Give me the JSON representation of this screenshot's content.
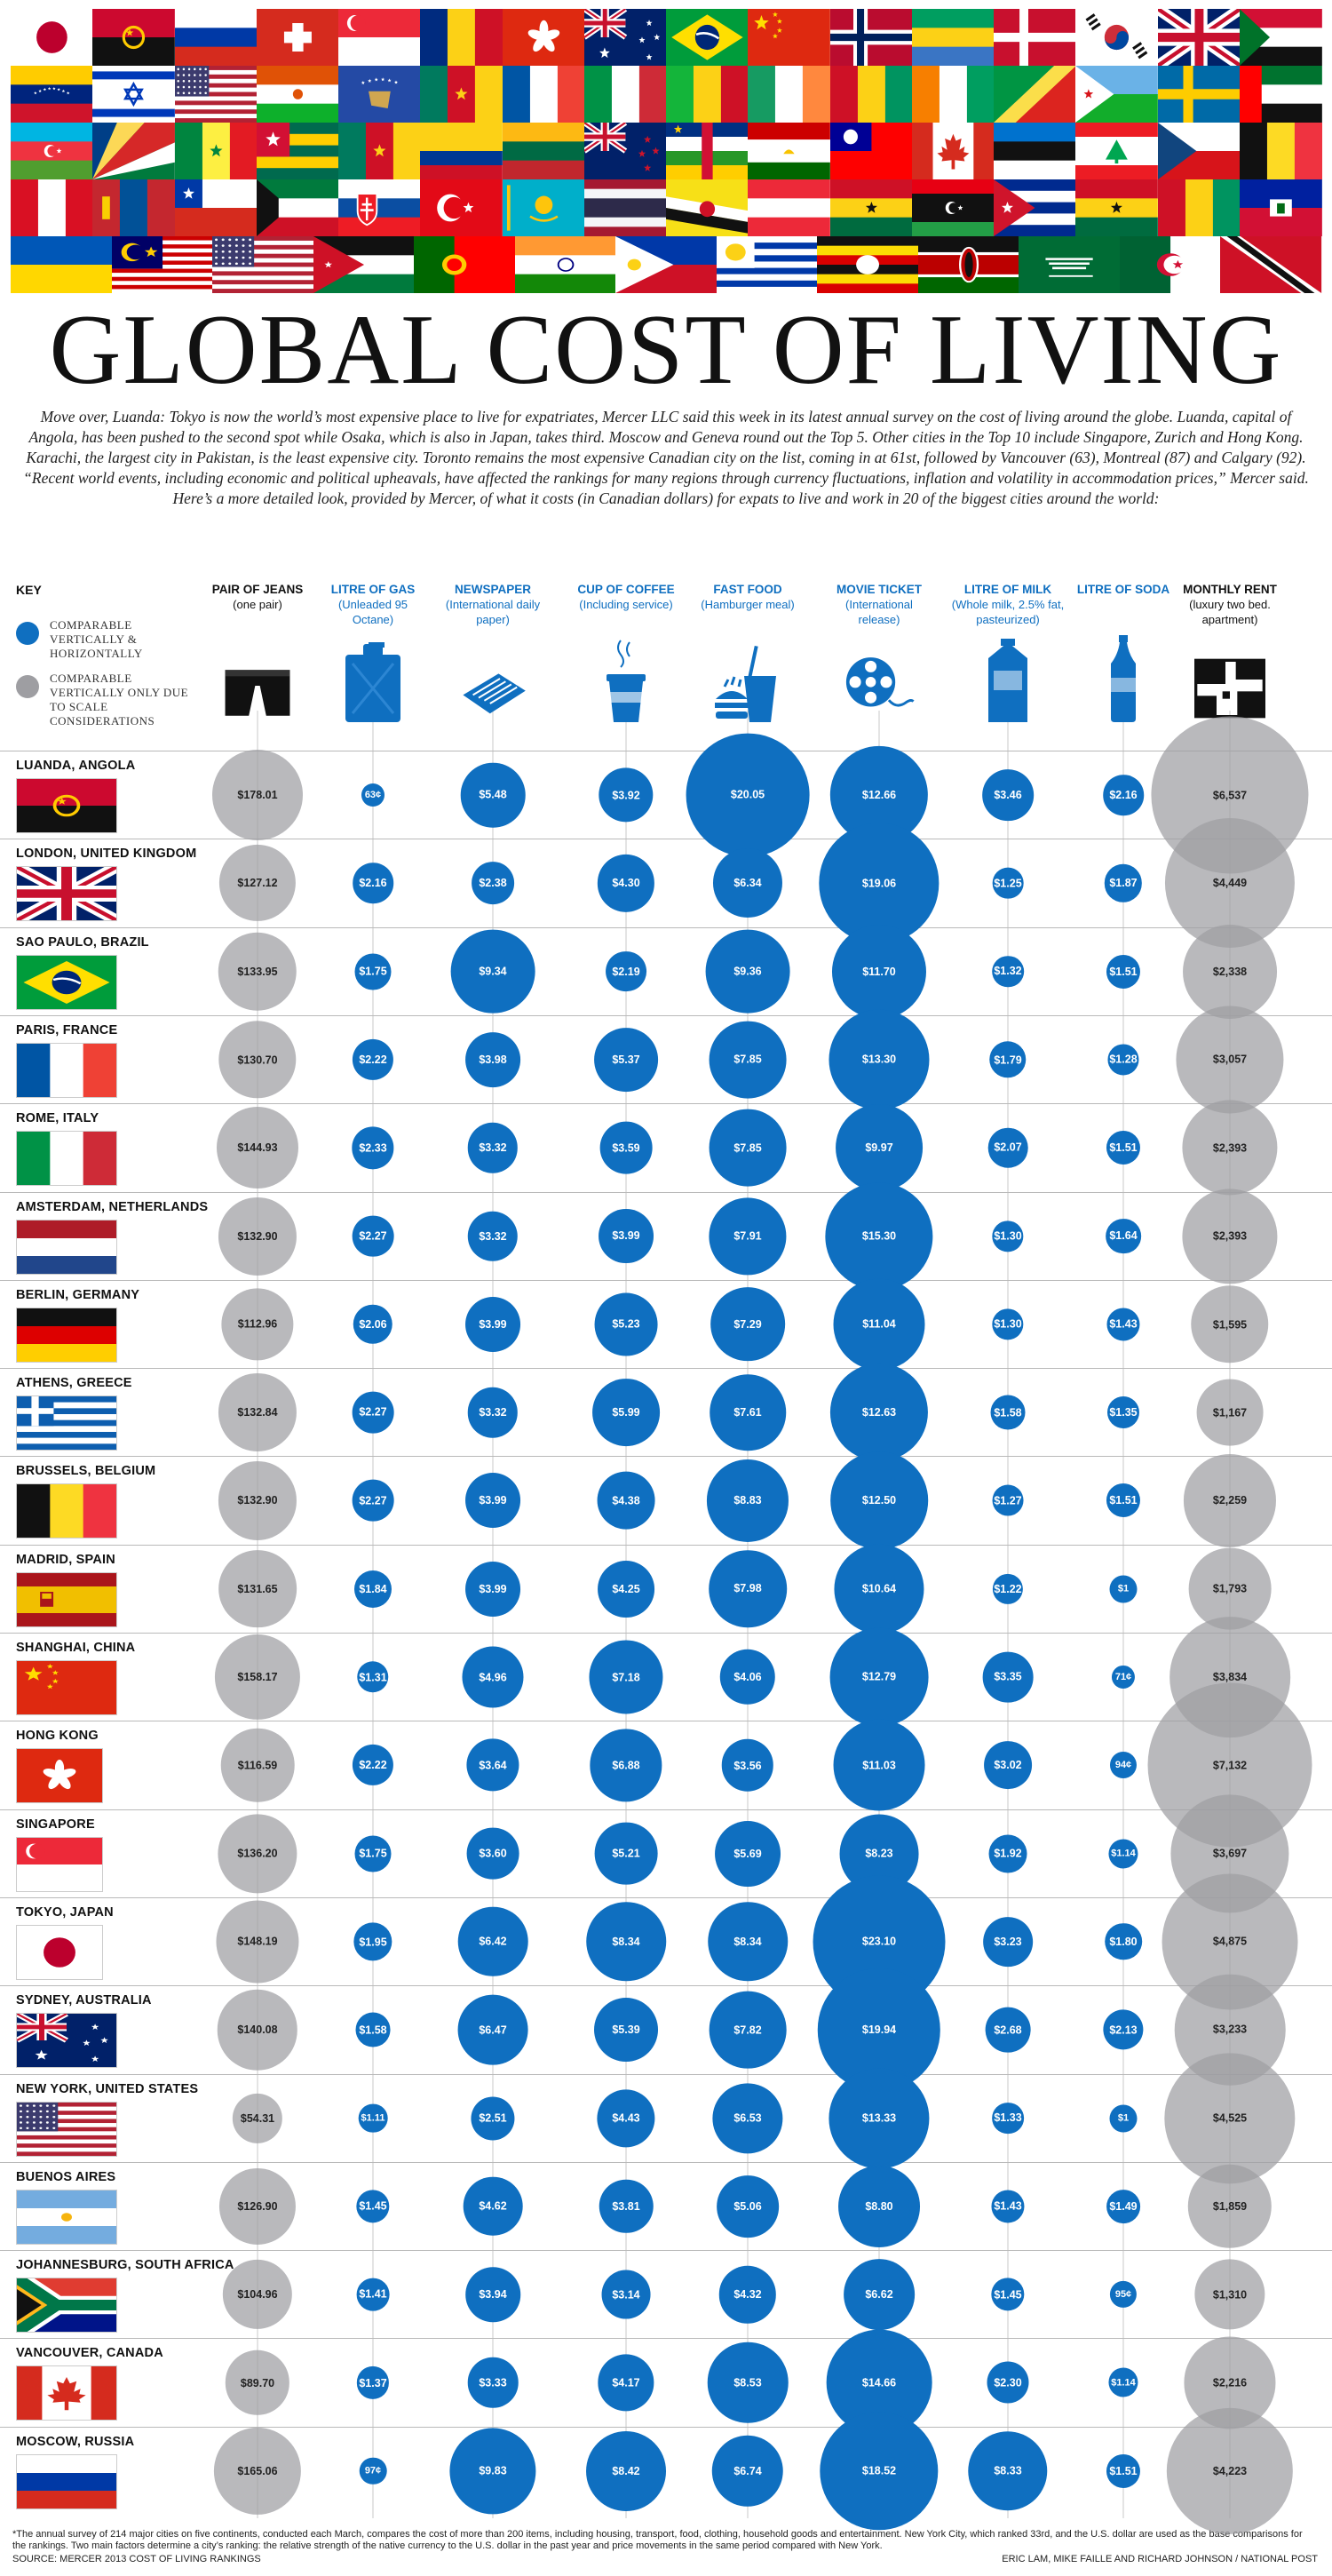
{
  "title": "GLOBAL COST OF LIVING",
  "intro": "Move over, Luanda: Tokyo is now the world’s most expensive place to live for expatriates, Mercer LLC said this week in its latest annual survey on the cost of living around the globe. Luanda, capital of Angola, has been pushed to the second spot while Osaka, which is also in Japan, takes third. Moscow and Geneva round out the Top 5. Other cities in the Top 10 include Singapore, Zurich and Hong Kong. Karachi, the largest city in Pakistan, is the least expensive city. Toronto remains the most expensive Canadian city on the list, coming in at 61st, followed by Vancouver (63), Montreal (87) and Calgary (92). “Recent world events, including economic and political upheavals, have affected the rankings for many regions through currency fluctuations, inflation and volatility in accommodation prices,” Mercer said. Here’s a more detailed look, provided by Mercer, of what it costs (in Canadian dollars) for expats to live and work in 20 of the biggest cities around the world:",
  "key": {
    "title": "KEY",
    "blue_label": "COMPARABLE VERTICALLY & HORIZONTALLY",
    "gray_label": "COMPARABLE VERTICALLY ONLY DUE TO SCALE CONSIDERATIONS"
  },
  "columns": [
    {
      "id": "jeans",
      "title": "PAIR OF JEANS",
      "sub": "(one pair)",
      "color": "#111111",
      "icon": "jeans-icon",
      "scale": "gray"
    },
    {
      "id": "gas",
      "title": "LITRE OF GAS",
      "sub": "(Unleaded 95 Octane)",
      "color": "#0f6fc0",
      "icon": "gas-can-icon",
      "scale": "blue"
    },
    {
      "id": "newspaper",
      "title": "NEWSPAPER",
      "sub": "(International daily paper)",
      "color": "#0f6fc0",
      "icon": "newspaper-icon",
      "scale": "blue"
    },
    {
      "id": "coffee",
      "title": "CUP OF COFFEE",
      "sub": "(Including service)",
      "color": "#0f6fc0",
      "icon": "coffee-cup-icon",
      "scale": "blue"
    },
    {
      "id": "fastfood",
      "title": "FAST FOOD",
      "sub": "(Hamburger meal)",
      "color": "#0f6fc0",
      "icon": "fast-food-icon",
      "scale": "blue"
    },
    {
      "id": "movie",
      "title": "MOVIE TICKET",
      "sub": "(International release)",
      "color": "#0f6fc0",
      "icon": "film-reel-icon",
      "scale": "blue"
    },
    {
      "id": "milk",
      "title": "LITRE OF MILK",
      "sub": "(Whole milk, 2.5% fat, pasteurized)",
      "color": "#0f6fc0",
      "icon": "milk-carton-icon",
      "scale": "blue"
    },
    {
      "id": "soda",
      "title": "LITRE OF SODA",
      "sub": "",
      "color": "#0f6fc0",
      "icon": "soda-bottle-icon",
      "scale": "blue"
    },
    {
      "id": "rent",
      "title": "MONTHLY RENT",
      "sub": "(luxury two bed. apartment)",
      "color": "#111111",
      "icon": "floor-plan-icon",
      "scale": "gray"
    }
  ],
  "cities": [
    {
      "name": "LUANDA, ANGOLA",
      "flag": "angola",
      "values": [
        "$178.01",
        "63¢",
        "$5.48",
        "$3.92",
        "$20.05",
        "$12.66",
        "$3.46",
        "$2.16",
        "$6,537"
      ],
      "nums": [
        178.01,
        0.63,
        5.48,
        3.92,
        20.05,
        12.66,
        3.46,
        2.16,
        6537
      ]
    },
    {
      "name": "LONDON, UNITED KINGDOM",
      "flag": "uk",
      "values": [
        "$127.12",
        "$2.16",
        "$2.38",
        "$4.30",
        "$6.34",
        "$19.06",
        "$1.25",
        "$1.87",
        "$4,449"
      ],
      "nums": [
        127.12,
        2.16,
        2.38,
        4.3,
        6.34,
        19.06,
        1.25,
        1.87,
        4449
      ]
    },
    {
      "name": "SAO PAULO, BRAZIL",
      "flag": "brazil",
      "values": [
        "$133.95",
        "$1.75",
        "$9.34",
        "$2.19",
        "$9.36",
        "$11.70",
        "$1.32",
        "$1.51",
        "$2,338"
      ],
      "nums": [
        133.95,
        1.75,
        9.34,
        2.19,
        9.36,
        11.7,
        1.32,
        1.51,
        2338
      ]
    },
    {
      "name": "PARIS, FRANCE",
      "flag": "france",
      "values": [
        "$130.70",
        "$2.22",
        "$3.98",
        "$5.37",
        "$7.85",
        "$13.30",
        "$1.79",
        "$1.28",
        "$3,057"
      ],
      "nums": [
        130.7,
        2.22,
        3.98,
        5.37,
        7.85,
        13.3,
        1.79,
        1.28,
        3057
      ]
    },
    {
      "name": "ROME, ITALY",
      "flag": "italy",
      "values": [
        "$144.93",
        "$2.33",
        "$3.32",
        "$3.59",
        "$7.85",
        "$9.97",
        "$2.07",
        "$1.51",
        "$2,393"
      ],
      "nums": [
        144.93,
        2.33,
        3.32,
        3.59,
        7.85,
        9.97,
        2.07,
        1.51,
        2393
      ]
    },
    {
      "name": "AMSTERDAM, NETHERLANDS",
      "flag": "netherlands",
      "values": [
        "$132.90",
        "$2.27",
        "$3.32",
        "$3.99",
        "$7.91",
        "$15.30",
        "$1.30",
        "$1.64",
        "$2,393"
      ],
      "nums": [
        132.9,
        2.27,
        3.32,
        3.99,
        7.91,
        15.3,
        1.3,
        1.64,
        2393
      ]
    },
    {
      "name": "BERLIN, GERMANY",
      "flag": "germany",
      "values": [
        "$112.96",
        "$2.06",
        "$3.99",
        "$5.23",
        "$7.29",
        "$11.04",
        "$1.30",
        "$1.43",
        "$1,595"
      ],
      "nums": [
        112.96,
        2.06,
        3.99,
        5.23,
        7.29,
        11.04,
        1.3,
        1.43,
        1595
      ]
    },
    {
      "name": "ATHENS, GREECE",
      "flag": "greece",
      "values": [
        "$132.84",
        "$2.27",
        "$3.32",
        "$5.99",
        "$7.61",
        "$12.63",
        "$1.58",
        "$1.35",
        "$1,167"
      ],
      "nums": [
        132.84,
        2.27,
        3.32,
        5.99,
        7.61,
        12.63,
        1.58,
        1.35,
        1167
      ]
    },
    {
      "name": "BRUSSELS, BELGIUM",
      "flag": "belgium",
      "values": [
        "$132.90",
        "$2.27",
        "$3.99",
        "$4.38",
        "$8.83",
        "$12.50",
        "$1.27",
        "$1.51",
        "$2,259"
      ],
      "nums": [
        132.9,
        2.27,
        3.99,
        4.38,
        8.83,
        12.5,
        1.27,
        1.51,
        2259
      ]
    },
    {
      "name": "MADRID, SPAIN",
      "flag": "spain",
      "values": [
        "$131.65",
        "$1.84",
        "$3.99",
        "$4.25",
        "$7.98",
        "$10.64",
        "$1.22",
        "$1",
        "$1,793"
      ],
      "nums": [
        131.65,
        1.84,
        3.99,
        4.25,
        7.98,
        10.64,
        1.22,
        1.0,
        1793
      ]
    },
    {
      "name": "SHANGHAI, CHINA",
      "flag": "china",
      "values": [
        "$158.17",
        "$1.31",
        "$4.96",
        "$7.18",
        "$4.06",
        "$12.79",
        "$3.35",
        "71¢",
        "$3,834"
      ],
      "nums": [
        158.17,
        1.31,
        4.96,
        7.18,
        4.06,
        12.79,
        3.35,
        0.71,
        3834
      ]
    },
    {
      "name": "HONG KONG",
      "flag": "hongkong",
      "values": [
        "$116.59",
        "$2.22",
        "$3.64",
        "$6.88",
        "$3.56",
        "$11.03",
        "$3.02",
        "94¢",
        "$7,132"
      ],
      "nums": [
        116.59,
        2.22,
        3.64,
        6.88,
        3.56,
        11.03,
        3.02,
        0.94,
        7132
      ]
    },
    {
      "name": "SINGAPORE",
      "flag": "singapore",
      "values": [
        "$136.20",
        "$1.75",
        "$3.60",
        "$5.21",
        "$5.69",
        "$8.23",
        "$1.92",
        "$1.14",
        "$3,697"
      ],
      "nums": [
        136.2,
        1.75,
        3.6,
        5.21,
        5.69,
        8.23,
        1.92,
        1.14,
        3697
      ]
    },
    {
      "name": "TOKYO, JAPAN",
      "flag": "japan",
      "values": [
        "$148.19",
        "$1.95",
        "$6.42",
        "$8.34",
        "$8.34",
        "$23.10",
        "$3.23",
        "$1.80",
        "$4,875"
      ],
      "nums": [
        148.19,
        1.95,
        6.42,
        8.34,
        8.34,
        23.1,
        3.23,
        1.8,
        4875
      ]
    },
    {
      "name": "SYDNEY, AUSTRALIA",
      "flag": "australia",
      "values": [
        "$140.08",
        "$1.58",
        "$6.47",
        "$5.39",
        "$7.82",
        "$19.94",
        "$2.68",
        "$2.13",
        "$3,233"
      ],
      "nums": [
        140.08,
        1.58,
        6.47,
        5.39,
        7.82,
        19.94,
        2.68,
        2.13,
        3233
      ]
    },
    {
      "name": "NEW YORK, UNITED STATES",
      "flag": "usa",
      "values": [
        "$54.31",
        "$1.11",
        "$2.51",
        "$4.43",
        "$6.53",
        "$13.33",
        "$1.33",
        "$1",
        "$4,525"
      ],
      "nums": [
        54.31,
        1.11,
        2.51,
        4.43,
        6.53,
        13.33,
        1.33,
        1.0,
        4525
      ]
    },
    {
      "name": "BUENOS AIRES",
      "flag": "argentina",
      "values": [
        "$126.90",
        "$1.45",
        "$4.62",
        "$3.81",
        "$5.06",
        "$8.80",
        "$1.43",
        "$1.49",
        "$1,859"
      ],
      "nums": [
        126.9,
        1.45,
        4.62,
        3.81,
        5.06,
        8.8,
        1.43,
        1.49,
        1859
      ]
    },
    {
      "name": "JOHANNESBURG, SOUTH AFRICA",
      "flag": "southafrica",
      "values": [
        "$104.96",
        "$1.41",
        "$3.94",
        "$3.14",
        "$4.32",
        "$6.62",
        "$1.45",
        "95¢",
        "$1,310"
      ],
      "nums": [
        104.96,
        1.41,
        3.94,
        3.14,
        4.32,
        6.62,
        1.45,
        0.95,
        1310
      ]
    },
    {
      "name": "VANCOUVER, CANADA",
      "flag": "canada",
      "values": [
        "$89.70",
        "$1.37",
        "$3.33",
        "$4.17",
        "$8.53",
        "$14.66",
        "$2.30",
        "$1.14",
        "$2,216"
      ],
      "nums": [
        89.7,
        1.37,
        3.33,
        4.17,
        8.53,
        14.66,
        2.3,
        1.14,
        2216
      ]
    },
    {
      "name": "MOSCOW, RUSSIA",
      "flag": "russia",
      "values": [
        "$165.06",
        "97¢",
        "$9.83",
        "$8.42",
        "$6.74",
        "$18.52",
        "$8.33",
        "$1.51",
        "$4,223"
      ],
      "nums": [
        165.06,
        0.97,
        9.83,
        8.42,
        6.74,
        18.52,
        8.33,
        1.51,
        4223
      ]
    }
  ],
  "footnote": "*The annual survey of 214 major cities on five continents, conducted each March, compares the cost of more than 200 items, including housing, transport, food, clothing, household goods and entertainment. New York City, which ranked 33rd, and the U.S. dollar are used as the base comparisons for the rankings. Two main factors determine a city’s ranking: the relative strength of the native currency to the U.S. dollar in the past year and price movements in the same period compared with New York.",
  "source": "SOURCE: MERCER 2013 COST OF LIVING RANKINGS",
  "credit": "ERIC LAM, MIKE FAILLE AND RICHARD JOHNSON / NATIONAL POST",
  "colors": {
    "blue": "#0f6fc0",
    "gray": "#9e9ea2"
  },
  "banner_flags": [
    "japan",
    "angola",
    "russia",
    "switzerland",
    "singapore",
    "romania",
    "hongkong",
    "australia",
    "brazil",
    "china",
    "norway",
    "gabon",
    "denmark",
    "southkorea",
    "uk",
    "sudan",
    "venezuela",
    "israel",
    "usa",
    "niger",
    "kosovo",
    "cameroon",
    "france",
    "italy",
    "mali",
    "ireland",
    "guinea",
    "ivorycoast",
    "congo",
    "djibouti",
    "sweden",
    "uae",
    "azerbaijan",
    "seychelles",
    "senegal",
    "togo",
    "cameroon",
    "colombia",
    "lithuania",
    "newzealand",
    "centralafrica",
    "tajikistan",
    "taiwan",
    "canada",
    "estonia",
    "lebanon",
    "czech",
    "belgium",
    "peru",
    "mongolia",
    "chile",
    "kuwait",
    "slovakia",
    "turkey",
    "kazakhstan",
    "thailand",
    "brunei",
    "austria",
    "ghana",
    "libya",
    "cuba",
    "ghana",
    "guinea",
    "haiti",
    "ukraine",
    "malaysia",
    "usa",
    "jordan",
    "portugal",
    "india",
    "philippines",
    "uruguay",
    "uganda",
    "kenya",
    "saudi",
    "algeria",
    "trinidad"
  ]
}
